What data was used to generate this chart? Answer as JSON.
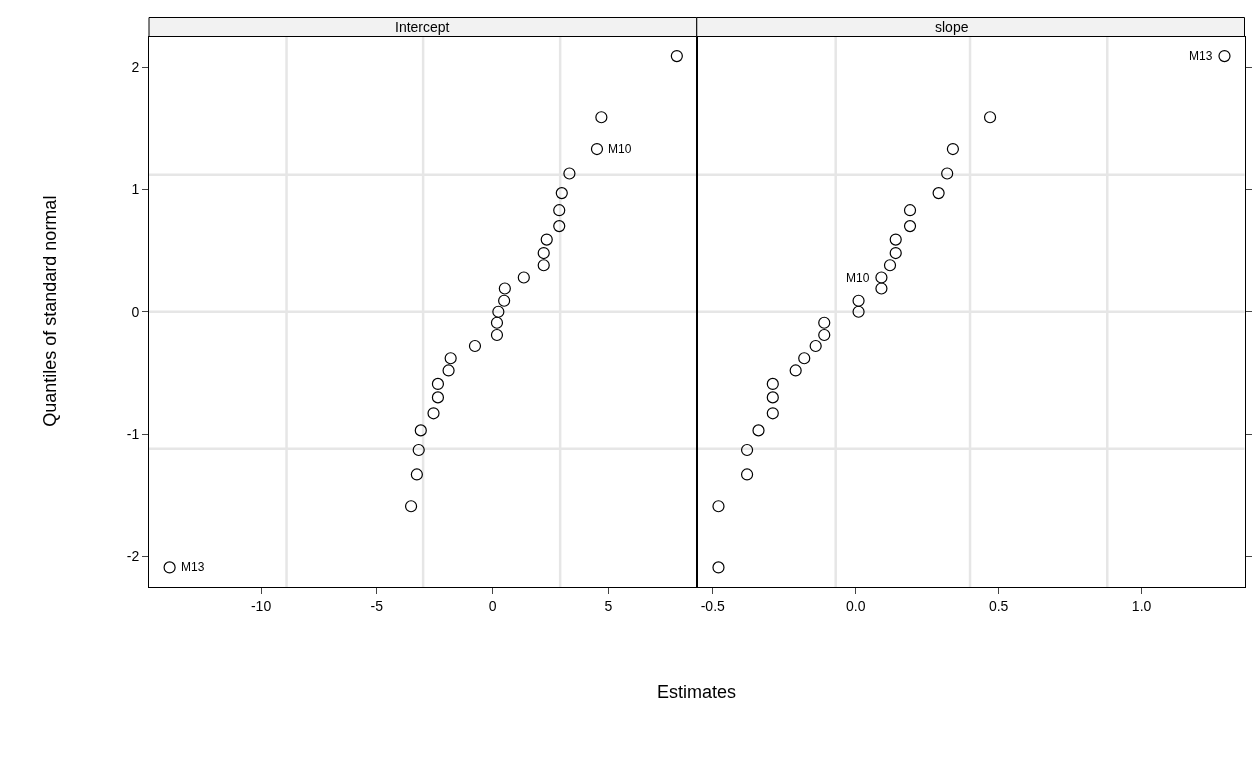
{
  "chart_data": [
    {
      "type": "scatter",
      "title": "Intercept",
      "ylabel": "Quantiles of standard normal",
      "xlabel": "Estimates",
      "marker": "circle",
      "x": [
        -13.95,
        -3.52,
        -3.27,
        -3.19,
        -3.1,
        -2.55,
        -2.36,
        -2.36,
        -1.9,
        -1.81,
        -0.76,
        0.19,
        0.19,
        0.25,
        0.5,
        0.53,
        1.35,
        2.21,
        2.21,
        2.34,
        2.88,
        2.88,
        2.99,
        3.32,
        4.51,
        4.7,
        7.96
      ],
      "series": [
        {
          "color": "#000000",
          "values": [
            -2.09,
            -1.59,
            -1.33,
            -1.13,
            -0.97,
            -0.83,
            -0.7,
            -0.59,
            -0.48,
            -0.38,
            -0.28,
            -0.19,
            -0.09,
            0,
            0.09,
            0.19,
            0.28,
            0.38,
            0.48,
            0.59,
            0.7,
            0.83,
            0.97,
            1.13,
            1.33,
            1.59,
            2.09
          ]
        }
      ],
      "xlim": [
        -14.84,
        8.82
      ],
      "xticks": [
        -10,
        -5,
        0,
        5
      ],
      "ylim": [
        -2.25,
        2.25
      ],
      "yticks": [
        -2,
        -1,
        0,
        1,
        2
      ],
      "ref_lines": [
        {
          "axis": "x",
          "value": -8.9,
          "color": "#e6e6e6"
        },
        {
          "axis": "x",
          "value": -3.0,
          "color": "#e6e6e6"
        },
        {
          "axis": "x",
          "value": 2.92,
          "color": "#e6e6e6"
        },
        {
          "axis": "y",
          "value": -1.12,
          "color": "#e6e6e6"
        },
        {
          "axis": "y",
          "value": 0,
          "color": "#e6e6e6"
        },
        {
          "axis": "y",
          "value": 1.12,
          "color": "#e6e6e6"
        }
      ],
      "annotations": [
        {
          "text": "M13",
          "x": -13.95,
          "y": -2.09
        },
        {
          "text": "M10",
          "x": 4.51,
          "y": 1.33
        }
      ]
    },
    {
      "type": "scatter",
      "title": "slope",
      "marker": "circle",
      "tick_labels": "x",
      "x": [
        -0.48,
        -0.48,
        -0.38,
        -0.38,
        -0.34,
        -0.29,
        -0.29,
        -0.29,
        -0.21,
        -0.18,
        -0.14,
        -0.11,
        -0.11,
        0.01,
        0.01,
        0.09,
        0.09,
        0.12,
        0.14,
        0.14,
        0.19,
        0.19,
        0.29,
        0.32,
        0.34,
        0.47,
        1.29
      ],
      "series": [
        {
          "color": "#000000",
          "values": [
            -2.09,
            -1.59,
            -1.33,
            -1.13,
            -0.97,
            -0.83,
            -0.7,
            -0.59,
            -0.48,
            -0.38,
            -0.28,
            -0.19,
            -0.09,
            0,
            0.09,
            0.19,
            0.28,
            0.38,
            0.48,
            0.59,
            0.7,
            0.83,
            0.97,
            1.13,
            1.33,
            1.59,
            2.09
          ]
        }
      ],
      "xlim": [
        -0.556,
        1.36
      ],
      "xticks": [
        -0.5,
        {
          "value": 0,
          "label": "0.0"
        },
        0.5,
        {
          "value": 1,
          "label": "1.0"
        }
      ],
      "ylim": [
        -2.25,
        2.25
      ],
      "yticks": [
        -2,
        -1,
        0,
        1,
        2
      ],
      "ref_lines": [
        {
          "axis": "x",
          "value": -0.07,
          "color": "#e6e6e6"
        },
        {
          "axis": "x",
          "value": 0.4,
          "color": "#e6e6e6"
        },
        {
          "axis": "x",
          "value": 0.88,
          "color": "#e6e6e6"
        },
        {
          "axis": "y",
          "value": -1.12,
          "color": "#e6e6e6"
        },
        {
          "axis": "y",
          "value": 0,
          "color": "#e6e6e6"
        },
        {
          "axis": "y",
          "value": 1.12,
          "color": "#e6e6e6"
        }
      ],
      "annotations": [
        {
          "text": "M10",
          "x": 0.09,
          "y": 0.28
        },
        {
          "text": "M13",
          "x": 1.29,
          "y": 2.09
        }
      ]
    }
  ]
}
